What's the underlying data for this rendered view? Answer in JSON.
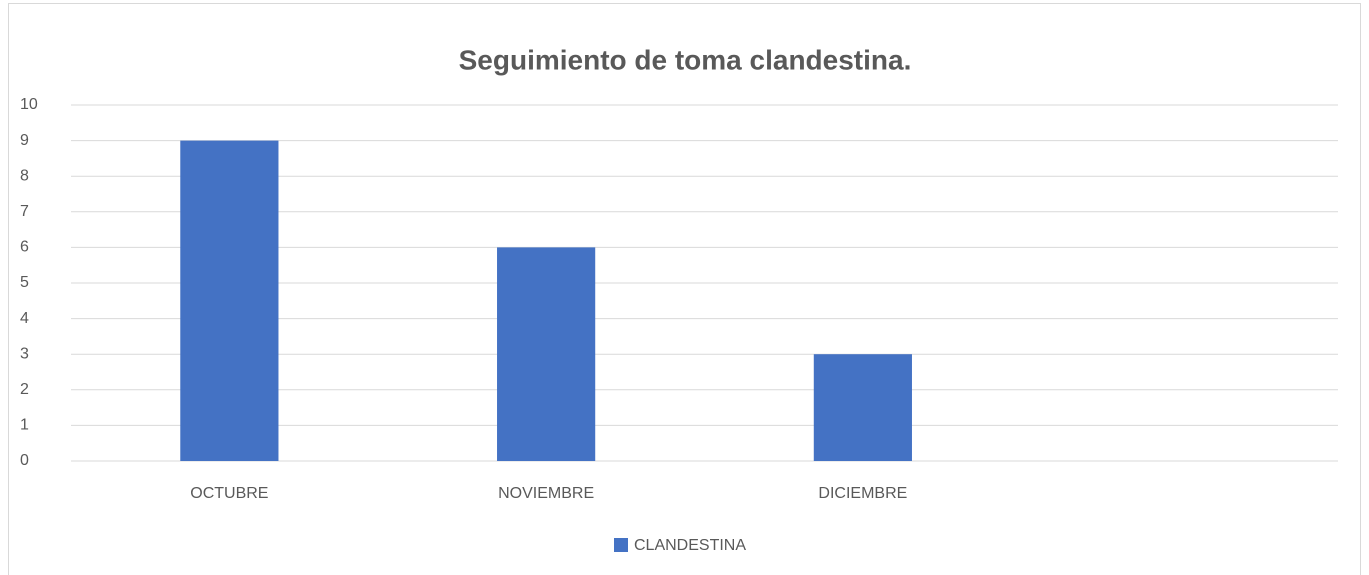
{
  "chart_data": {
    "type": "bar",
    "title": "Seguimiento de toma clandestina.",
    "categories": [
      "OCTUBRE",
      "NOVIEMBRE",
      "DICIEMBRE",
      null
    ],
    "series": [
      {
        "name": "CLANDESTINA",
        "color": "#4472c4",
        "values": [
          9,
          6,
          3,
          null
        ]
      }
    ],
    "ylim": [
      0,
      10
    ],
    "yticks": [
      0,
      1,
      2,
      3,
      4,
      5,
      6,
      7,
      8,
      9,
      10
    ],
    "grid": true,
    "legend": "bottom"
  }
}
